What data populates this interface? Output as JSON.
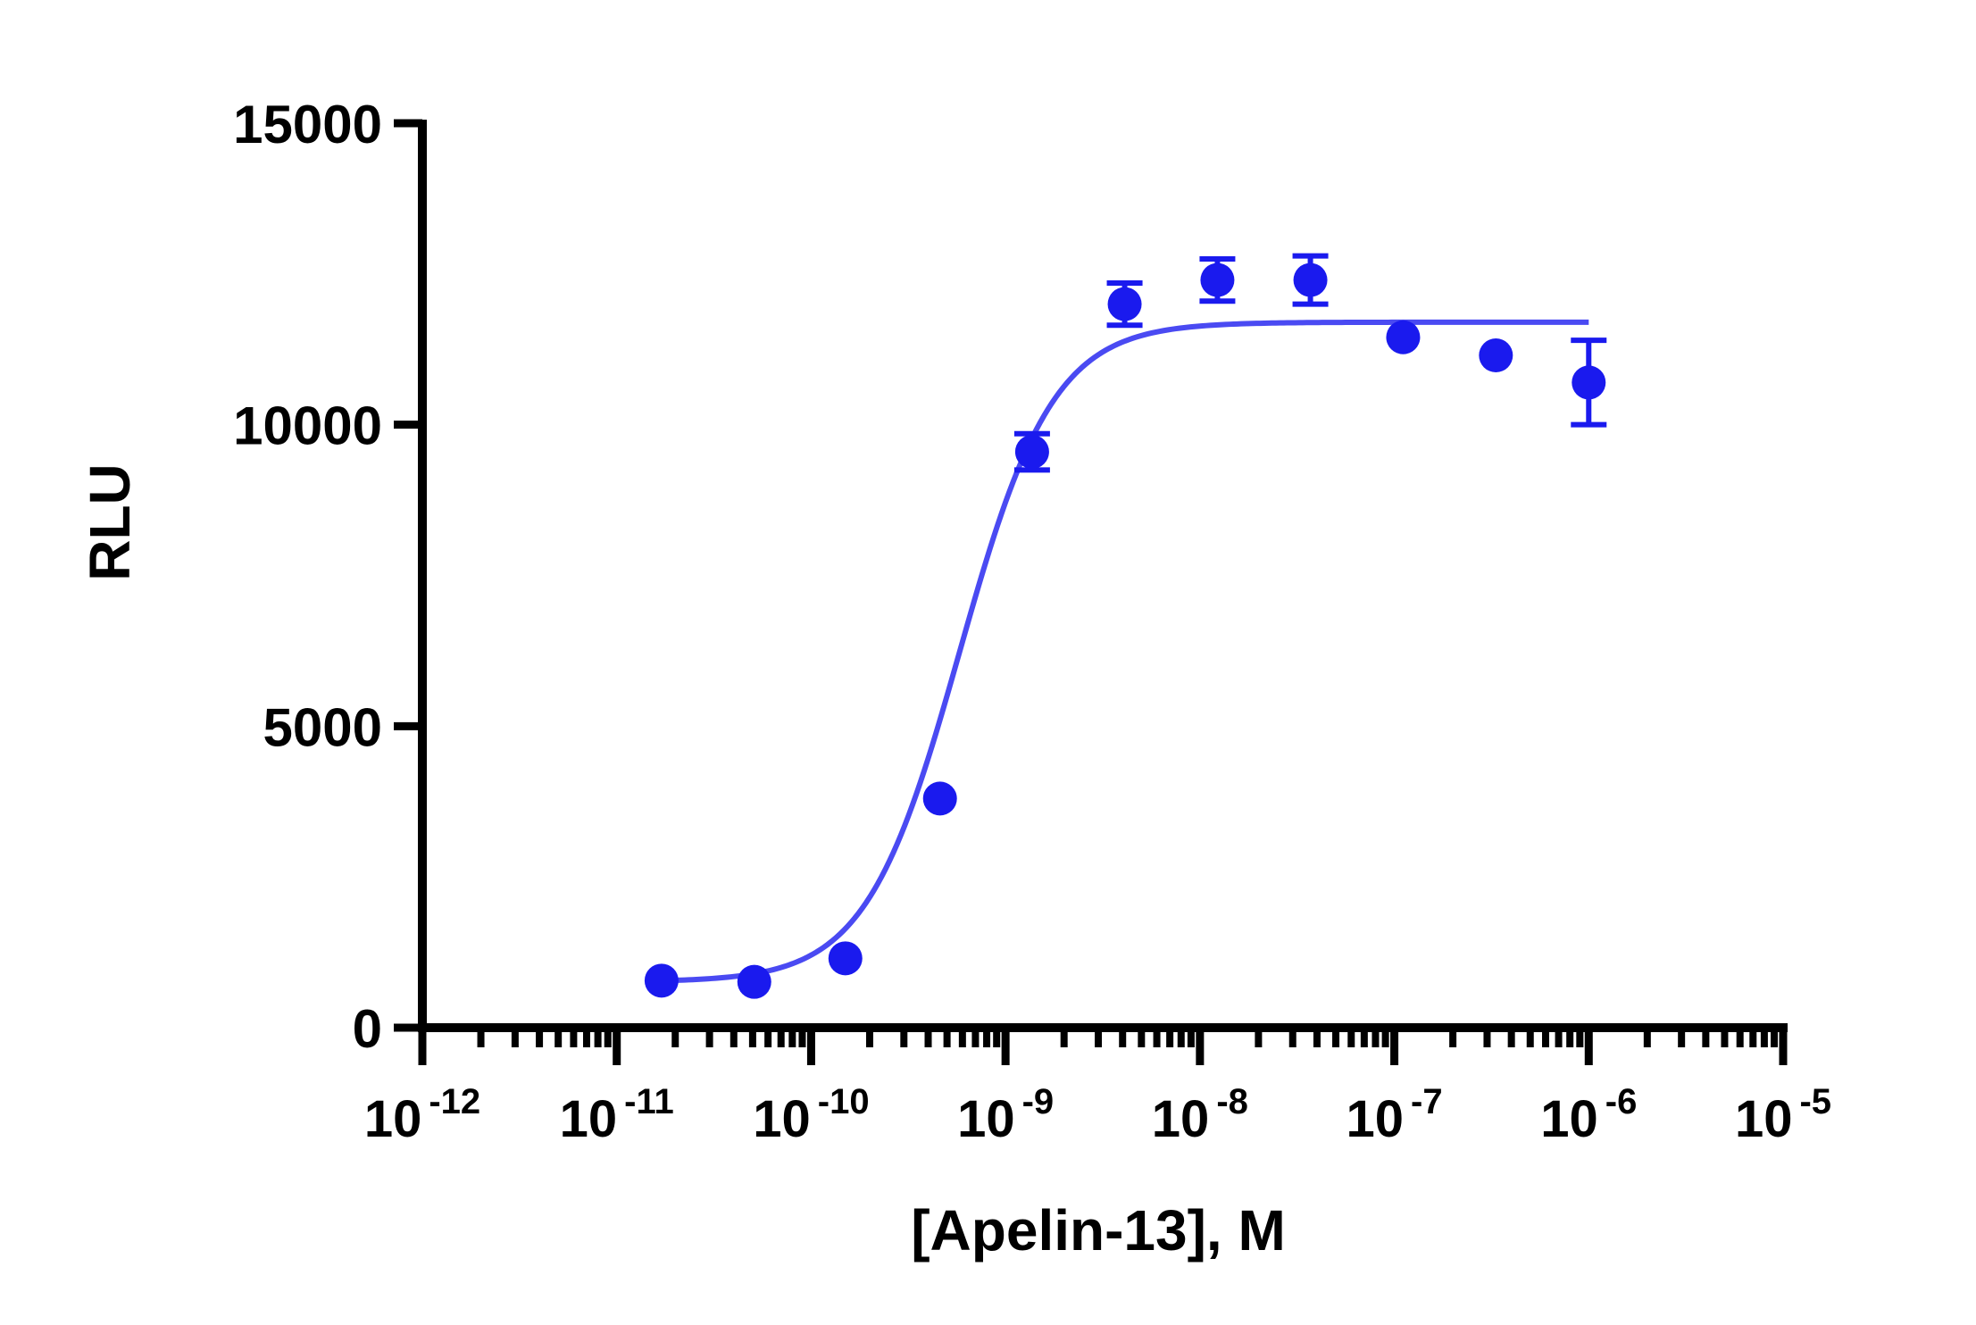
{
  "chart_data": {
    "type": "scatter",
    "title": "",
    "xlabel": "[Apelin-13], M",
    "ylabel": "RLU",
    "x_scale": "log",
    "xlim": [
      1e-12,
      1e-05
    ],
    "ylim": [
      0,
      15000
    ],
    "grid": false,
    "legend": "none",
    "x_ticks": [
      {
        "base": "10",
        "exp": "-12",
        "value": 1e-12
      },
      {
        "base": "10",
        "exp": "-11",
        "value": 1e-11
      },
      {
        "base": "10",
        "exp": "-10",
        "value": 1e-10
      },
      {
        "base": "10",
        "exp": "-9",
        "value": 1e-09
      },
      {
        "base": "10",
        "exp": "-8",
        "value": 1e-08
      },
      {
        "base": "10",
        "exp": "-7",
        "value": 1e-07
      },
      {
        "base": "10",
        "exp": "-6",
        "value": 1e-06
      },
      {
        "base": "10",
        "exp": "-5",
        "value": 1e-05
      }
    ],
    "y_ticks": [
      {
        "label": "0",
        "value": 0
      },
      {
        "label": "5000",
        "value": 5000
      },
      {
        "label": "10000",
        "value": 10000
      },
      {
        "label": "15000",
        "value": 15000
      }
    ],
    "series": [
      {
        "color": "#1a1aee",
        "points": [
          {
            "x": 1.7e-11,
            "y": 780,
            "err": 0
          },
          {
            "x": 5.1e-11,
            "y": 760,
            "err": 0
          },
          {
            "x": 1.5e-10,
            "y": 1150,
            "err": 0
          },
          {
            "x": 4.6e-10,
            "y": 3800,
            "err": 0
          },
          {
            "x": 1.37e-09,
            "y": 9550,
            "err": 300
          },
          {
            "x": 4.1e-09,
            "y": 12000,
            "err": 350
          },
          {
            "x": 1.23e-08,
            "y": 12400,
            "err": 350
          },
          {
            "x": 3.7e-08,
            "y": 12400,
            "err": 400
          },
          {
            "x": 1.11e-07,
            "y": 11450,
            "err": 0
          },
          {
            "x": 3.33e-07,
            "y": 11150,
            "err": 0
          },
          {
            "x": 1e-06,
            "y": 10700,
            "err": 700
          }
        ]
      }
    ],
    "fit": {
      "model": "four-parameter logistic",
      "color": "#4a4af2",
      "bottom": 760,
      "top": 11700,
      "ec50": 5.8e-10,
      "hill": 1.8,
      "x_range": [
        1.7e-11,
        1e-06
      ]
    }
  }
}
